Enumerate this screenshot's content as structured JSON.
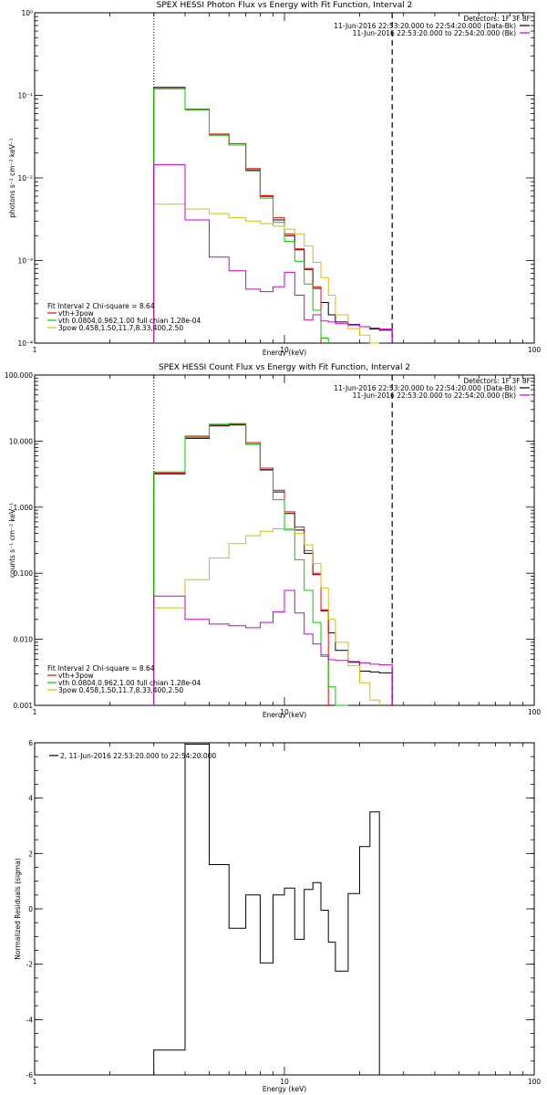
{
  "chart_data": [
    {
      "type": "line",
      "title": "SPEX HESSI Photon Flux vs Energy with Fit Function, Interval 2",
      "xlabel": "Energy (keV)",
      "ylabel": "photons s⁻¹ cm⁻² keV⁻¹",
      "xscale": "log",
      "yscale": "log",
      "xlim": [
        1,
        100
      ],
      "ylim": [
        0.0001,
        1
      ],
      "xticks": [
        {
          "v": 1,
          "label": "1"
        },
        {
          "v": 10,
          "label": "10"
        },
        {
          "v": 100,
          "label": "100"
        }
      ],
      "yticks": [
        {
          "v": 0.0001,
          "label": "10⁻⁴"
        },
        {
          "v": 0.001,
          "label": "10⁻³"
        },
        {
          "v": 0.01,
          "label": "10⁻²"
        },
        {
          "v": 0.1,
          "label": "10⁻¹"
        },
        {
          "v": 1,
          "label": "10⁰"
        }
      ],
      "fit_range": [
        3.0,
        27.0
      ],
      "header": [
        "Detectors: 1F 3F 8F",
        "11-Jun-2016 22:53:20.000 to 22:54:20.000 (Data-Bk)",
        "11-Jun-2016 22:53:20.000 to 22:54:20.000 (Bk)"
      ],
      "fit_labels": [
        "Fit Interval 2   Chi-square = 8.64",
        "vth+3pow",
        "vth 0.0804,0.962,1.00  full chian 1.28e-04",
        "3pow 0.458,1.50,11.7,8.33,400,2.50"
      ],
      "edges": [
        3.0,
        4.0,
        5.0,
        6.0,
        7.0,
        8.0,
        9.0,
        10.0,
        11.0,
        12.0,
        13.0,
        14.0,
        15.0,
        16.0,
        18.0,
        20.0,
        22.0,
        24.0,
        27.0
      ],
      "series": [
        {
          "name": "11-Jun-2016 22:53:20.000 to 22:54:20.000 (Data-Bk)",
          "color": "#000000",
          "values": [
            0.125,
            0.068,
            0.033,
            0.025,
            0.0125,
            0.006,
            0.0031,
            0.002,
            0.00135,
            0.00078,
            0.00046,
            0.00031,
            0.00022,
            0.00018,
            0.000168,
            0.000158,
            0.000148,
            0.000143
          ]
        },
        {
          "name": "vth+3pow",
          "color": "#ff0000",
          "values": [
            0.12,
            0.067,
            0.034,
            0.026,
            0.013,
            0.0061,
            0.0033,
            0.0021,
            0.00138,
            0.0008,
            0.00048,
            null,
            null,
            null,
            null,
            null,
            null,
            null
          ]
        },
        {
          "name": "vth",
          "color": "#00cc00",
          "values": [
            0.12,
            0.067,
            0.033,
            0.025,
            0.0122,
            0.0057,
            0.0029,
            0.0017,
            0.00098,
            0.00052,
            0.00025,
            0.000115,
            null,
            null,
            null,
            null,
            null,
            null
          ]
        },
        {
          "name": "3pow",
          "color": "#ddbb00",
          "values": [
            0.0048,
            0.0042,
            0.0037,
            0.0033,
            0.003,
            0.0028,
            0.0026,
            0.0024,
            0.0021,
            0.0015,
            0.00095,
            0.00062,
            0.00038,
            0.00022,
            0.00015,
            0.000125,
            0.0001,
            null
          ]
        },
        {
          "name": "11-Jun-2016 22:53:20.000 to 22:54:20.000 (Bk)",
          "color": "#cc00cc",
          "values": [
            0.0145,
            0.0031,
            0.0011,
            0.00075,
            0.00045,
            0.00042,
            0.00048,
            0.00072,
            0.00038,
            0.00019,
            0.00022,
            0.000185,
            0.00018,
            0.000172,
            0.000165,
            0.000158,
            0.000152,
            0.000148
          ]
        }
      ]
    },
    {
      "type": "line",
      "title": "SPEX HESSI Count Flux vs Energy with Fit Function, Interval 2",
      "xlabel": "Energy (keV)",
      "ylabel": "counts s⁻¹ cm⁻² keV⁻¹",
      "xscale": "log",
      "yscale": "log",
      "xlim": [
        1,
        100
      ],
      "ylim": [
        0.001,
        100
      ],
      "xticks": [
        {
          "v": 1,
          "label": "1"
        },
        {
          "v": 10,
          "label": "10"
        },
        {
          "v": 100,
          "label": "100"
        }
      ],
      "yticks": [
        {
          "v": 0.001,
          "label": "0.001"
        },
        {
          "v": 0.01,
          "label": "0.010"
        },
        {
          "v": 0.1,
          "label": "0.100"
        },
        {
          "v": 1,
          "label": "1.000"
        },
        {
          "v": 10,
          "label": "10.000"
        },
        {
          "v": 100,
          "label": "100.000"
        }
      ],
      "fit_range": [
        3.0,
        27.0
      ],
      "header": [
        "Detectors: 1F 3F 8F",
        "11-Jun-2016 22:53:20.000 to 22:54:20.000 (Data-Bk)",
        "11-Jun-2016 22:53:20.000 to 22:54:20.000 (Bk)"
      ],
      "fit_labels": [
        "Fit Interval 2   Chi-square = 8.64",
        "vth+3pow",
        "vth 0.0804,0.962,1.00  full chian 1.28e-04",
        "3pow 0.458,1.50,11.7,8.33,400,2.50"
      ],
      "edges": [
        3.0,
        4.0,
        5.0,
        6.0,
        7.0,
        8.0,
        9.0,
        10.0,
        11.0,
        12.0,
        13.0,
        14.0,
        15.0,
        16.0,
        18.0,
        20.0,
        22.0,
        24.0,
        27.0
      ],
      "series": [
        {
          "name": "11-Jun-2016 22:53:20.000 to 22:54:20.000 (Data-Bk)",
          "color": "#000000",
          "values": [
            3.2,
            11.0,
            17.0,
            17.5,
            9.0,
            3.7,
            1.7,
            0.8,
            0.45,
            0.2,
            0.095,
            0.027,
            0.0125,
            0.0068,
            0.0045,
            0.0033,
            0.0032,
            0.0031
          ]
        },
        {
          "name": "vth+3pow",
          "color": "#ff0000",
          "values": [
            3.3,
            11.5,
            17.5,
            18.0,
            9.5,
            3.9,
            1.8,
            0.85,
            0.5,
            0.22,
            0.1,
            0.028,
            null,
            null,
            null,
            null,
            null,
            null
          ]
        },
        {
          "name": "vth",
          "color": "#00cc00",
          "values": [
            3.4,
            12.0,
            18.0,
            18.5,
            9.0,
            3.6,
            1.3,
            0.45,
            0.16,
            0.055,
            0.018,
            0.0055,
            0.0019,
            0.001,
            null,
            null,
            null,
            null
          ]
        },
        {
          "name": "3pow",
          "color": "#ddbb00",
          "values": [
            0.03,
            0.08,
            0.17,
            0.28,
            0.37,
            0.43,
            0.47,
            0.47,
            0.4,
            0.27,
            0.14,
            0.06,
            0.02,
            0.009,
            0.004,
            0.0022,
            0.0012,
            null
          ]
        },
        {
          "name": "11-Jun-2016 22:53:20.000 to 22:54:20.000 (Bk)",
          "color": "#cc00cc",
          "values": [
            0.045,
            0.02,
            0.017,
            0.016,
            0.015,
            0.018,
            0.026,
            0.055,
            0.025,
            0.012,
            0.0085,
            0.0058,
            0.0049,
            0.0048,
            0.0046,
            0.0044,
            0.0042,
            0.0041
          ]
        }
      ]
    },
    {
      "type": "line",
      "title": "",
      "xlabel": "Energy (keV)",
      "ylabel": "Normalized Residuals (sigma)",
      "xscale": "log",
      "yscale": "linear",
      "xlim": [
        1,
        100
      ],
      "ylim": [
        -6,
        6
      ],
      "xticks": [
        {
          "v": 1,
          "label": "1"
        },
        {
          "v": 10,
          "label": "10"
        },
        {
          "v": 100,
          "label": "100"
        }
      ],
      "yticks": [
        {
          "v": -6,
          "label": "-6"
        },
        {
          "v": -4,
          "label": "-4"
        },
        {
          "v": -2,
          "label": "-2"
        },
        {
          "v": 0,
          "label": "0"
        },
        {
          "v": 2,
          "label": "2"
        },
        {
          "v": 4,
          "label": "4"
        },
        {
          "v": 6,
          "label": "6"
        }
      ],
      "legend": "2, 11-Jun-2016 22:53:20.000 to 22:54:20.000",
      "edges": [
        3.0,
        4.0,
        5.0,
        6.0,
        7.0,
        8.0,
        9.0,
        10.0,
        11.0,
        12.0,
        13.0,
        14.0,
        15.0,
        16.0,
        18.0,
        20.0,
        22.0,
        24.0,
        27.0
      ],
      "series": [
        {
          "name": "2, 11-Jun-2016 22:53:20.000 to 22:54:20.000",
          "color": "#000000",
          "values": [
            -5.1,
            5.95,
            1.6,
            -0.7,
            0.5,
            -1.95,
            0.5,
            0.75,
            -1.1,
            0.7,
            0.95,
            -0.05,
            -1.2,
            -2.25,
            0.55,
            2.25,
            3.5,
            null
          ]
        }
      ]
    }
  ]
}
